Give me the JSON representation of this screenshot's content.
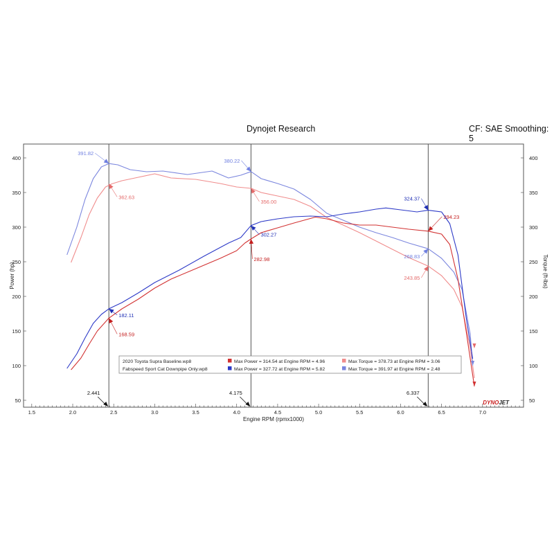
{
  "header": {
    "title": "Dynojet Research",
    "correction": "CF: SAE Smoothing: 5"
  },
  "chart_data": {
    "type": "line",
    "title": "Dynojet Research",
    "subtitle": "CF: SAE Smoothing: 5",
    "xlabel": "Engine RPM (rpmx1000)",
    "ylabel_left": "Power (hp)",
    "ylabel_right": "Torque (ft-lbs)",
    "xlim": [
      1.4,
      7.5
    ],
    "ylim": [
      40,
      420
    ],
    "x_ticks": [
      1.5,
      2.0,
      2.5,
      3.0,
      3.5,
      4.0,
      4.5,
      5.0,
      5.5,
      6.0,
      6.5,
      7.0
    ],
    "x_tick_labels": [
      "1.5",
      "2.0",
      "2.5",
      "3.0",
      "3.5",
      "4.0",
      "4.5",
      "5.0",
      "5.5",
      "6.0",
      "6.5",
      "7.0"
    ],
    "y_ticks": [
      50,
      100,
      150,
      200,
      250,
      300,
      350,
      400
    ],
    "y_tick_labels": [
      "50",
      "100",
      "150",
      "200",
      "250",
      "300",
      "350",
      "400"
    ],
    "cursor_lines": [
      {
        "x": 2.441,
        "label": "2.441"
      },
      {
        "x": 4.175,
        "label": "4.175"
      },
      {
        "x": 6.337,
        "label": "6.337"
      }
    ],
    "series": [
      {
        "name": "Max Torque = 378.73 at Engine RPM = 3.06",
        "kind": "torque",
        "color": "#f08c8c",
        "x": [
          1.98,
          2.1,
          2.2,
          2.3,
          2.4,
          2.48,
          2.6,
          2.8,
          3.0,
          3.2,
          3.5,
          3.8,
          4.0,
          4.18,
          4.3,
          4.5,
          4.7,
          4.9,
          5.1,
          5.3,
          5.5,
          5.7,
          5.9,
          6.1,
          6.337,
          6.5,
          6.65,
          6.75,
          6.85,
          6.9
        ],
        "y": [
          249,
          285,
          318,
          342,
          358,
          362.63,
          367,
          372,
          377,
          371,
          369,
          363,
          358,
          356,
          350,
          345,
          340,
          330,
          314,
          303,
          292,
          280,
          268,
          256,
          243.85,
          230,
          210,
          185,
          125,
          82
        ]
      },
      {
        "name": "Max Torque = 391.97 at Engine RPM = 2.48",
        "kind": "torque",
        "color": "#7b86de",
        "x": [
          1.93,
          2.05,
          2.15,
          2.25,
          2.35,
          2.441,
          2.55,
          2.7,
          2.9,
          3.1,
          3.4,
          3.7,
          3.9,
          4.05,
          4.175,
          4.3,
          4.5,
          4.7,
          4.9,
          5.1,
          5.3,
          5.5,
          5.7,
          5.9,
          6.1,
          6.337,
          6.5,
          6.65,
          6.75,
          6.85,
          6.88
        ],
        "y": [
          260,
          300,
          340,
          370,
          387,
          391.82,
          390,
          383,
          380,
          381,
          376,
          381,
          371,
          375,
          380.22,
          370,
          363,
          355,
          340,
          320,
          310,
          300,
          292,
          285,
          277,
          268.83,
          255,
          235,
          210,
          145,
          100
        ]
      },
      {
        "name": "Max Power = 314.54 at Engine RPM = 4.96",
        "kind": "power",
        "color": "#d23232",
        "x": [
          1.98,
          2.1,
          2.2,
          2.3,
          2.441,
          2.6,
          2.8,
          3.0,
          3.2,
          3.5,
          3.8,
          4.0,
          4.1,
          4.175,
          4.3,
          4.5,
          4.7,
          4.96,
          5.1,
          5.3,
          5.5,
          5.7,
          5.9,
          6.1,
          6.337,
          6.5,
          6.6,
          6.7,
          6.8,
          6.9
        ],
        "y": [
          94,
          111,
          131,
          150,
          168.59,
          182,
          196,
          212,
          225,
          240,
          255,
          266,
          277,
          282.98,
          292,
          299,
          306,
          314.54,
          312,
          306,
          303,
          303,
          300,
          297,
          294.23,
          290,
          275,
          225,
          150,
          70
        ]
      },
      {
        "name": "Max Power = 327.72 at Engine RPM = 5.82",
        "kind": "power",
        "color": "#2c39c7",
        "x": [
          1.93,
          2.05,
          2.15,
          2.25,
          2.35,
          2.441,
          2.6,
          2.8,
          3.0,
          3.3,
          3.6,
          3.9,
          4.05,
          4.175,
          4.3,
          4.5,
          4.7,
          4.9,
          5.1,
          5.3,
          5.5,
          5.7,
          5.82,
          6.0,
          6.2,
          6.337,
          6.5,
          6.6,
          6.7,
          6.8,
          6.88
        ],
        "y": [
          96,
          117,
          140,
          161,
          174,
          182.11,
          191,
          205,
          220,
          238,
          258,
          277,
          285,
          302.27,
          308,
          312,
          315,
          316,
          315,
          319,
          322,
          326,
          327.72,
          325,
          322,
          324.37,
          322,
          305,
          260,
          170,
          110
        ]
      }
    ],
    "annotations": [
      {
        "x": 2.441,
        "y": 391.82,
        "text": "391.82",
        "color": "#6f7fe0"
      },
      {
        "x": 2.441,
        "y": 362.63,
        "text": "362.63",
        "color": "#e46a6a"
      },
      {
        "x": 2.441,
        "y": 182.11,
        "text": "182.11",
        "color": "#1f2fb5"
      },
      {
        "x": 2.441,
        "y": 168.59,
        "text": "168.59",
        "color": "#c41f1f"
      },
      {
        "x": 4.175,
        "y": 380.22,
        "text": "380.22",
        "color": "#6f7fe0"
      },
      {
        "x": 4.175,
        "y": 356.0,
        "text": "356.00",
        "color": "#e46a6a"
      },
      {
        "x": 4.175,
        "y": 302.27,
        "text": "302.27",
        "color": "#1f2fb5"
      },
      {
        "x": 4.175,
        "y": 282.98,
        "text": "282.98",
        "color": "#c41f1f"
      },
      {
        "x": 6.337,
        "y": 324.37,
        "text": "324.37",
        "color": "#1f2fb5"
      },
      {
        "x": 6.337,
        "y": 294.23,
        "text": "294.23",
        "color": "#c41f1f"
      },
      {
        "x": 6.337,
        "y": 268.83,
        "text": "268.83",
        "color": "#6f7fe0"
      },
      {
        "x": 6.337,
        "y": 243.85,
        "text": "243.85",
        "color": "#e46a6a"
      }
    ],
    "legend": {
      "placement": "bottom-center",
      "rows": [
        {
          "run": "2020 Toyota Supra Baseline.wp8",
          "entries": [
            {
              "text": "Max Power = 314.54 at Engine RPM = 4.96",
              "color": "#d23232"
            },
            {
              "text": "Max Torque = 378.73 at Engine RPM = 3.06",
              "color": "#f08c8c"
            }
          ]
        },
        {
          "run": "Fabspeed Sport Cat Downpipe Only.wp8",
          "entries": [
            {
              "text": "Max Power = 327.72 at Engine RPM = 5.82",
              "color": "#2c39c7"
            },
            {
              "text": "Max Torque = 391.97 at Engine RPM = 2.48",
              "color": "#7b86de"
            }
          ]
        }
      ]
    },
    "watermark": "DYNOJET",
    "grid": false
  }
}
